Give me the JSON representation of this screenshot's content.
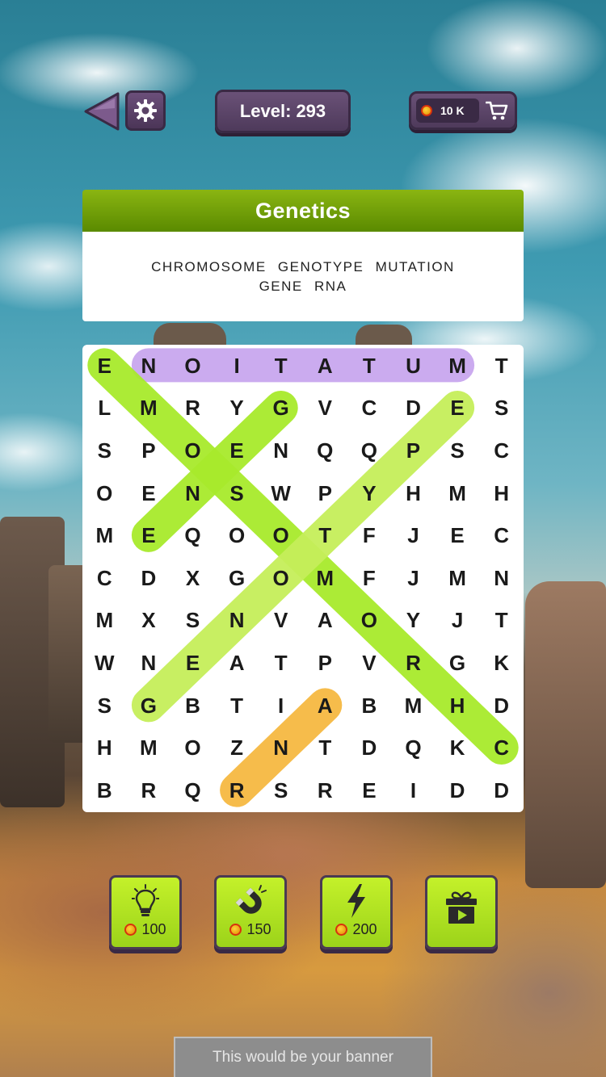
{
  "header": {
    "level_label": "Level:",
    "level_value": "293",
    "coins": "10 K"
  },
  "category": {
    "title": "Genetics",
    "words_line1": [
      "CHROMOSOME",
      "GENOTYPE",
      "MUTATION"
    ],
    "words_line2": [
      "GENE",
      "RNA"
    ]
  },
  "grid": {
    "rows": [
      [
        "E",
        "N",
        "O",
        "I",
        "T",
        "A",
        "T",
        "U",
        "M",
        "T"
      ],
      [
        "L",
        "M",
        "R",
        "Y",
        "G",
        "V",
        "C",
        "D",
        "E",
        "S"
      ],
      [
        "S",
        "P",
        "O",
        "E",
        "N",
        "Q",
        "Q",
        "P",
        "S",
        "C"
      ],
      [
        "O",
        "E",
        "N",
        "S",
        "W",
        "P",
        "Y",
        "H",
        "M",
        "H"
      ],
      [
        "M",
        "E",
        "Q",
        "O",
        "O",
        "T",
        "F",
        "J",
        "E",
        "C"
      ],
      [
        "C",
        "D",
        "X",
        "G",
        "O",
        "M",
        "F",
        "J",
        "M",
        "N"
      ],
      [
        "M",
        "X",
        "S",
        "N",
        "V",
        "A",
        "O",
        "Y",
        "J",
        "T"
      ],
      [
        "W",
        "N",
        "E",
        "A",
        "T",
        "P",
        "V",
        "R",
        "G",
        "K"
      ],
      [
        "S",
        "G",
        "B",
        "T",
        "I",
        "A",
        "B",
        "M",
        "H",
        "D"
      ],
      [
        "H",
        "M",
        "O",
        "Z",
        "N",
        "T",
        "D",
        "Q",
        "K",
        "C"
      ],
      [
        "B",
        "R",
        "Q",
        "R",
        "S",
        "R",
        "E",
        "I",
        "D",
        "D"
      ]
    ],
    "found_words": [
      {
        "word": "MUTATION",
        "start": [
          0,
          8
        ],
        "end": [
          0,
          1
        ],
        "color": "#c9a7ef"
      },
      {
        "word": "CHROMOSOME",
        "start": [
          0,
          0
        ],
        "end": [
          9,
          9
        ],
        "color": "#a8ea2c"
      },
      {
        "word": "GENE",
        "start": [
          1,
          4
        ],
        "end": [
          4,
          1
        ],
        "color": "#a8ea2c"
      },
      {
        "word": "GENOTYPE",
        "start": [
          8,
          1
        ],
        "end": [
          1,
          8
        ],
        "color": "#c6ef5a"
      },
      {
        "word": "RNA",
        "start": [
          10,
          3
        ],
        "end": [
          8,
          5
        ],
        "color": "#f6b942"
      }
    ]
  },
  "powerups": [
    {
      "name": "lightbulb-icon",
      "price": "100"
    },
    {
      "name": "magnet-icon",
      "price": "150"
    },
    {
      "name": "lightning-icon",
      "price": "200"
    },
    {
      "name": "gift-video-icon",
      "price": ""
    }
  ],
  "banner": {
    "text": "This would be your banner"
  }
}
